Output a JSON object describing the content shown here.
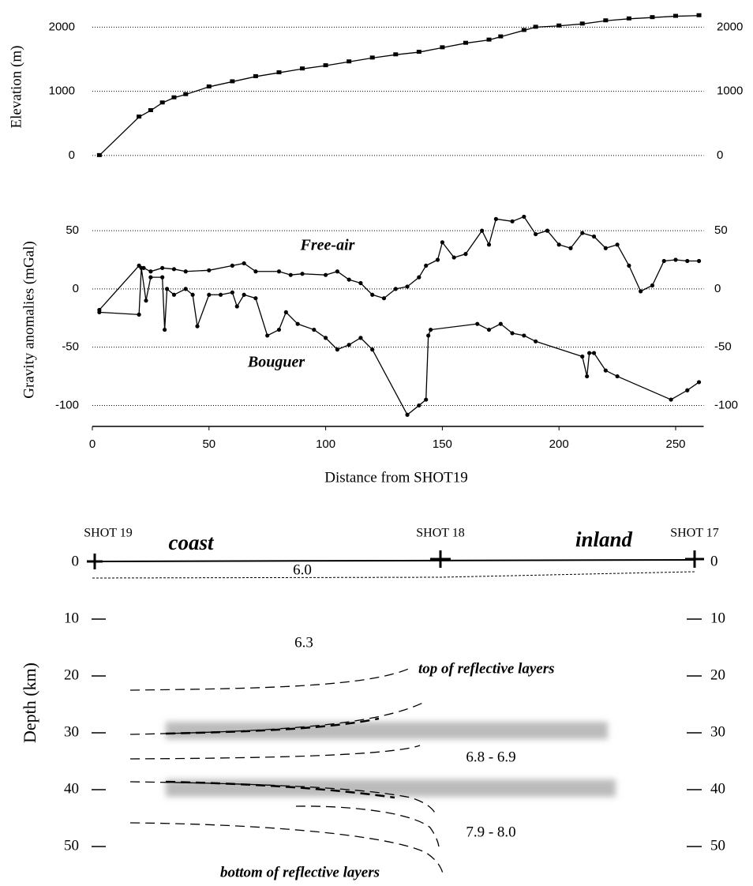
{
  "chart_data": [
    {
      "type": "line",
      "ylabel": "Elevation (m)",
      "xlim": [
        0,
        262
      ],
      "ylim": [
        -100,
        2300
      ],
      "yticks": [
        0,
        1000,
        2000
      ],
      "grid": true,
      "series": [
        {
          "color": "#000000",
          "x": [
            3,
            20,
            25,
            30,
            35,
            40,
            50,
            60,
            70,
            80,
            90,
            100,
            110,
            120,
            130,
            140,
            150,
            160,
            170,
            175,
            185,
            190,
            200,
            210,
            220,
            230,
            240,
            250,
            260
          ],
          "values": [
            0,
            600,
            700,
            820,
            900,
            950,
            1070,
            1150,
            1230,
            1290,
            1350,
            1400,
            1460,
            1520,
            1570,
            1610,
            1680,
            1750,
            1800,
            1850,
            1950,
            2000,
            2020,
            2050,
            2100,
            2130,
            2150,
            2170,
            2180
          ]
        }
      ]
    },
    {
      "type": "line",
      "ylabel": "Gravity anomalies (mGal)",
      "xlabel": "Distance from SHOT19",
      "xlim": [
        0,
        262
      ],
      "ylim": [
        -118,
        65
      ],
      "xticks": [
        0,
        50,
        100,
        150,
        200,
        250
      ],
      "yticks": [
        -100,
        -50,
        0,
        50
      ],
      "grid": true,
      "series": [
        {
          "name": "Free-air",
          "color": "#000000",
          "x": [
            3,
            20,
            22,
            25,
            30,
            35,
            40,
            50,
            60,
            65,
            70,
            80,
            85,
            90,
            100,
            105,
            110,
            115,
            120,
            125,
            130,
            135,
            140,
            143,
            148,
            150,
            155,
            160,
            167,
            170,
            173,
            180,
            185,
            190,
            195,
            200,
            205,
            210,
            215,
            220,
            225,
            230,
            235,
            240,
            245,
            250,
            255,
            260
          ],
          "values": [
            -18,
            20,
            18,
            15,
            18,
            17,
            15,
            16,
            20,
            22,
            15,
            15,
            12,
            13,
            12,
            15,
            8,
            5,
            -5,
            -8,
            0,
            2,
            10,
            20,
            25,
            40,
            27,
            30,
            50,
            38,
            60,
            58,
            62,
            47,
            50,
            38,
            35,
            48,
            45,
            35,
            38,
            20,
            -2,
            3,
            24,
            25,
            24,
            24
          ]
        },
        {
          "name": "Bouguer",
          "color": "#000000",
          "x": [
            3,
            20,
            21,
            23,
            25,
            30,
            31,
            32,
            35,
            40,
            43,
            45,
            50,
            55,
            60,
            62,
            65,
            70,
            75,
            80,
            83,
            88,
            95,
            100,
            105,
            110,
            115,
            120,
            135,
            140,
            143,
            144,
            145,
            165,
            170,
            175,
            180,
            185,
            190,
            210,
            212,
            213,
            215,
            220,
            225,
            248,
            255,
            260
          ],
          "values": [
            -20,
            -22,
            18,
            -10,
            10,
            10,
            -35,
            0,
            -5,
            0,
            -5,
            -32,
            -5,
            -5,
            -3,
            -15,
            -5,
            -8,
            -40,
            -35,
            -20,
            -30,
            -35,
            -42,
            -52,
            -48,
            -42,
            -52,
            -108,
            -100,
            -95,
            -40,
            -35,
            -30,
            -35,
            -30,
            -38,
            -40,
            -45,
            -58,
            -75,
            -55,
            -55,
            -70,
            -75,
            -95,
            -87,
            -80
          ]
        }
      ]
    },
    {
      "type": "section",
      "ylabel": "Depth (km)",
      "ylim": [
        0,
        50
      ],
      "yticks": [
        0,
        10,
        20,
        30,
        40,
        50
      ],
      "y_inverted": true,
      "shots": [
        "SHOT 19",
        "SHOT 18",
        "SHOT 17"
      ],
      "regions": [
        "coast",
        "inland"
      ],
      "velocities": [
        "6.0",
        "6.3",
        "6.8 - 6.9",
        "7.9 - 8.0"
      ],
      "annotations": [
        "top of reflective layers",
        "bottom of reflective layers"
      ]
    }
  ]
}
